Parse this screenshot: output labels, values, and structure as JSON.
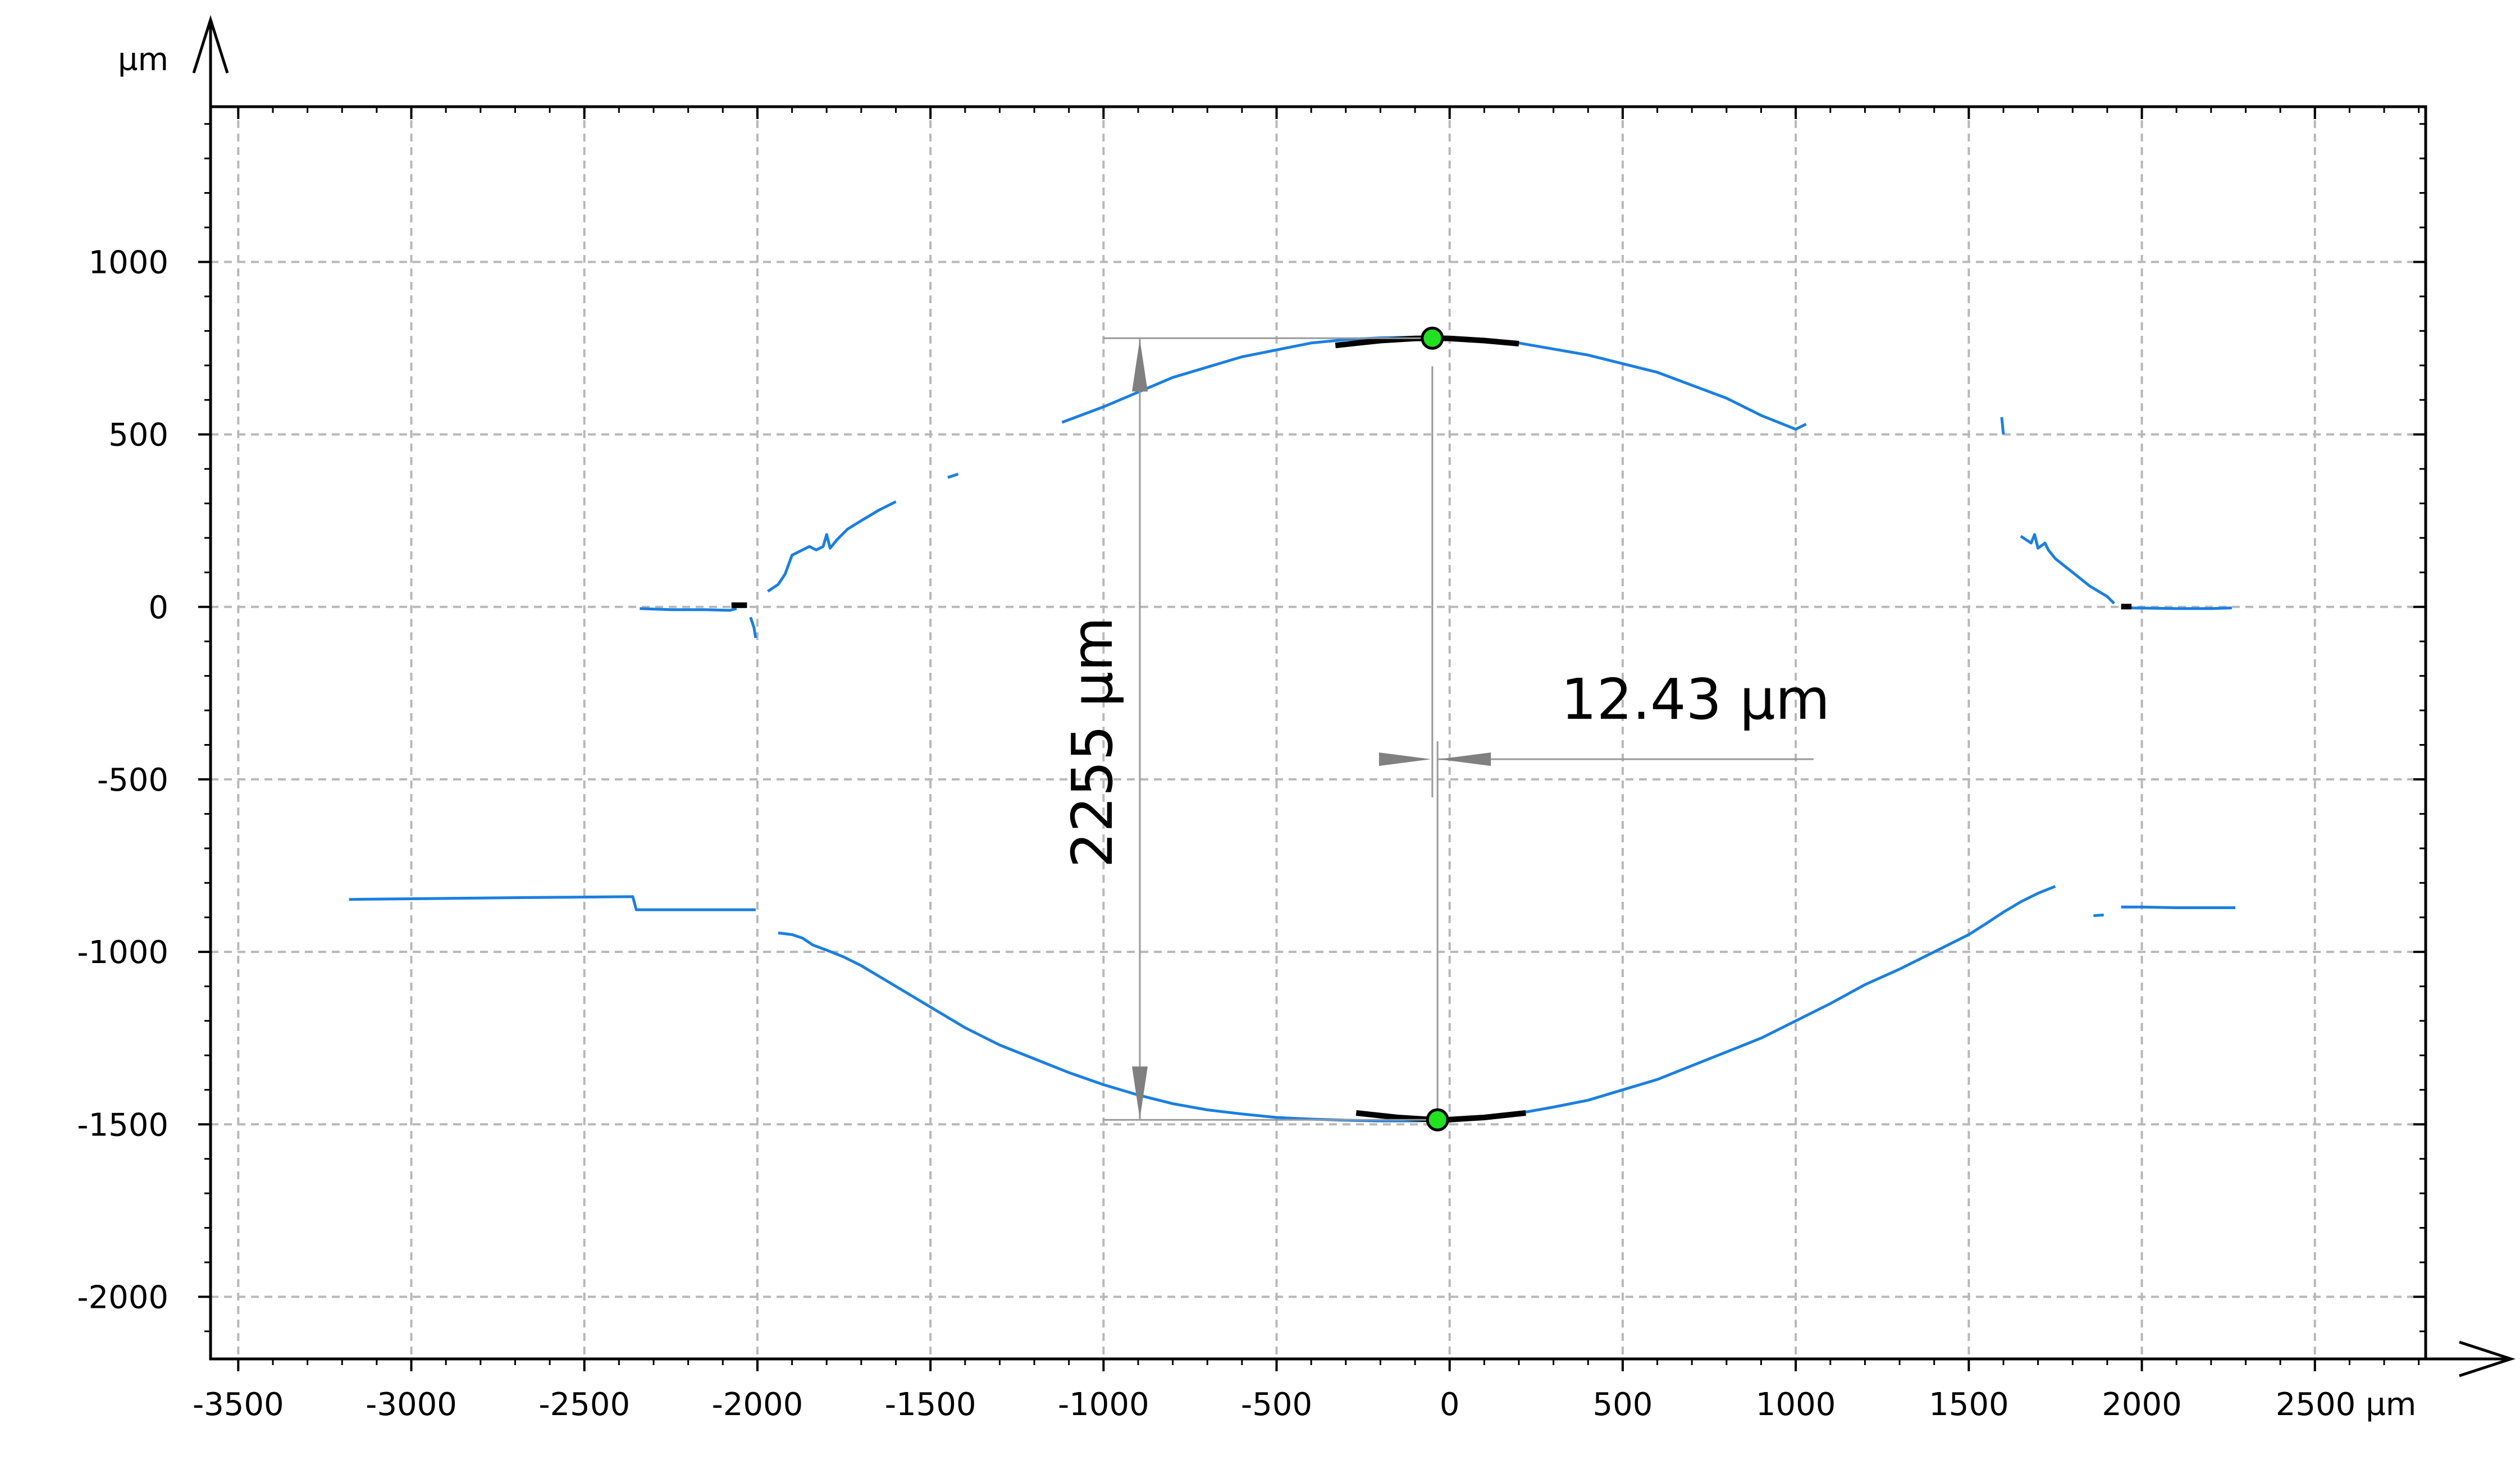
{
  "chart_data": {
    "type": "line",
    "title": "",
    "xlabel": "µm",
    "ylabel": "µm",
    "xlim": [
      -3580,
      2820
    ],
    "ylim": [
      -2180,
      1450
    ],
    "grid": true,
    "xticks": [
      -3500,
      -3000,
      -2500,
      -2000,
      -1500,
      -1000,
      -500,
      0,
      500,
      1000,
      1500,
      2000,
      2500
    ],
    "xtick_labels": [
      "-3500",
      "-3000",
      "-2500",
      "-2000",
      "-1500",
      "-1000",
      "-500",
      "0",
      "500",
      "1000",
      "1500",
      "2000",
      "2500 µm"
    ],
    "yticks": [
      1000,
      500,
      0,
      -500,
      -1000,
      -1500,
      -2000
    ],
    "ytick_labels": [
      "1000",
      "500",
      "0",
      "-500",
      "-1000",
      "-1500",
      "-2000"
    ],
    "series_color": "#1a7fe0",
    "fit_color": "#000000",
    "marker_color": "#22e022",
    "annotation_color": "#999999",
    "series": [
      {
        "x": [
          -2340,
          -2250,
          -2150,
          -2080,
          -2060
        ],
        "y": [
          -5,
          -8,
          -8,
          -10,
          -5
        ]
      },
      {
        "x": [
          -2020,
          -2010,
          -2005
        ],
        "y": [
          -30,
          -60,
          -90
        ]
      },
      {
        "x": [
          -1970,
          -1940,
          -1920,
          -1900,
          -1880,
          -1850,
          -1830,
          -1810,
          -1800,
          -1790,
          -1770,
          -1740,
          -1700,
          -1650,
          -1600
        ],
        "y": [
          45,
          65,
          95,
          150,
          160,
          175,
          165,
          175,
          210,
          170,
          195,
          225,
          250,
          280,
          305
        ]
      },
      {
        "x": [
          -1450,
          -1420
        ],
        "y": [
          375,
          385
        ]
      },
      {
        "x": [
          -1120,
          -1000,
          -800,
          -600,
          -400,
          -300,
          -200,
          -100,
          -30,
          0,
          100,
          200,
          400,
          600,
          800,
          900,
          1000,
          1030
        ],
        "y": [
          535,
          580,
          665,
          725,
          765,
          775,
          780,
          782,
          780,
          780,
          775,
          765,
          730,
          680,
          605,
          555,
          515,
          530
        ]
      },
      {
        "x": [
          1595,
          1600
        ],
        "y": [
          550,
          500
        ]
      },
      {
        "x": [
          1650,
          1680,
          1690,
          1700,
          1720,
          1730,
          1750,
          1800,
          1850,
          1900,
          1920
        ],
        "y": [
          205,
          185,
          210,
          170,
          185,
          165,
          140,
          100,
          60,
          30,
          10
        ]
      },
      {
        "x": [
          1970,
          2100,
          2200,
          2260
        ],
        "y": [
          -3,
          -5,
          -5,
          -3
        ]
      },
      {
        "x": [
          -3180,
          -2900,
          -2600,
          -2360,
          -2350,
          -2300,
          -2200,
          -2005
        ],
        "y": [
          -848,
          -845,
          -842,
          -840,
          -878,
          -878,
          -878,
          -878
        ]
      },
      {
        "x": [
          -1940,
          -1900,
          -1870,
          -1840,
          -1800,
          -1750,
          -1700,
          -1600,
          -1500,
          -1400,
          -1300,
          -1200,
          -1100,
          -1000,
          -900,
          -800,
          -700,
          -600,
          -500,
          -400,
          -300,
          -200,
          -100,
          -30,
          0,
          100,
          200,
          300,
          400,
          500,
          600,
          700,
          800,
          900,
          1000,
          1100,
          1200,
          1300,
          1400,
          1500,
          1550,
          1600,
          1650,
          1700,
          1750
        ],
        "y": [
          -945,
          -950,
          -960,
          -980,
          -995,
          -1015,
          -1040,
          -1100,
          -1160,
          -1220,
          -1270,
          -1310,
          -1350,
          -1385,
          -1415,
          -1440,
          -1458,
          -1470,
          -1480,
          -1485,
          -1488,
          -1490,
          -1490,
          -1488,
          -1487,
          -1480,
          -1468,
          -1450,
          -1430,
          -1400,
          -1370,
          -1330,
          -1290,
          -1250,
          -1200,
          -1150,
          -1095,
          -1050,
          -1000,
          -950,
          -918,
          -885,
          -855,
          -830,
          -810
        ]
      },
      {
        "x": [
          1860,
          1890
        ],
        "y": [
          -895,
          -893
        ]
      },
      {
        "x": [
          1940,
          2000,
          2100,
          2200,
          2270
        ],
        "y": [
          -870,
          -870,
          -872,
          -872,
          -872
        ]
      }
    ],
    "fits": [
      {
        "x": [
          -330,
          -200,
          -100,
          -40,
          0,
          100,
          200
        ],
        "y": [
          758,
          772,
          778,
          779,
          778,
          772,
          763
        ]
      },
      {
        "x": [
          -270,
          -150,
          -40,
          0,
          100,
          220
        ],
        "y": [
          -1467,
          -1480,
          -1487,
          -1486,
          -1480,
          -1467
        ]
      },
      {
        "x": [
          -2075,
          -2030
        ],
        "y": [
          5,
          5
        ]
      },
      {
        "x": [
          1940,
          1970
        ],
        "y": [
          1,
          1
        ]
      }
    ],
    "markers": [
      {
        "x": -50,
        "y": 779
      },
      {
        "x": -35,
        "y": -1487
      }
    ],
    "annotations": {
      "vertical_distance": "2255 µm",
      "horizontal_distance": "12.43 µm"
    }
  }
}
